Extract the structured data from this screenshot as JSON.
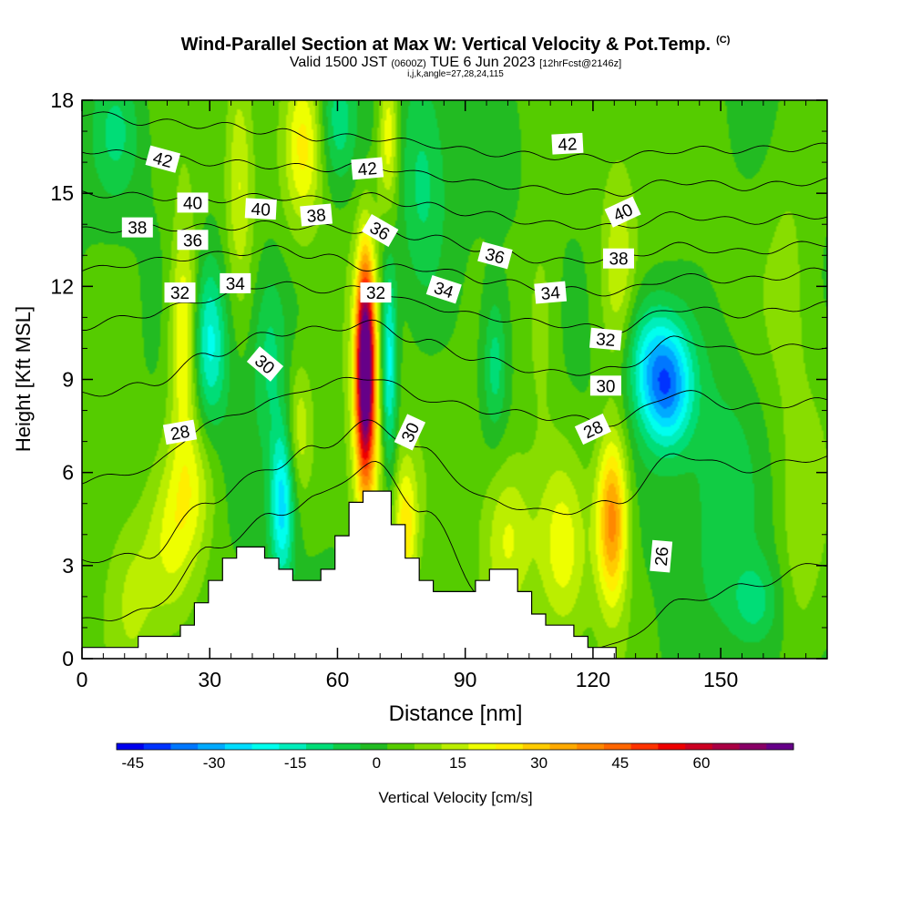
{
  "header": {
    "title": "Wind-Parallel Section at Max W: Vertical Velocity & Pot.Temp.",
    "copyright": "(C)",
    "valid_prefix": "Valid 1500 JST",
    "valid_utc": "(0600Z)",
    "valid_date": "TUE 6 Jun 2023",
    "forecast": "[12hrFcst@2146z]",
    "indices": "i,j,k,angle=27,28,24,115"
  },
  "chart_data": {
    "type": "heatmap",
    "xlabel": "Distance [nm]",
    "ylabel": "Height [Kft MSL]",
    "xlim": [
      0,
      175
    ],
    "ylim": [
      0,
      18
    ],
    "x_ticks": [
      "0",
      "30",
      "60",
      "90",
      "120",
      "150"
    ],
    "y_ticks": [
      "0",
      "3",
      "6",
      "9",
      "12",
      "15",
      "18"
    ],
    "colorbar": {
      "label": "Vertical Velocity [cm/s]",
      "tick_labels": [
        "-45",
        "-30",
        "-15",
        "0",
        "15",
        "30",
        "45",
        "60"
      ],
      "levels_min": -48,
      "levels_step": 5,
      "colors": [
        "#0000ee",
        "#0033ff",
        "#0077ff",
        "#00aaff",
        "#00ddff",
        "#00ffee",
        "#00eebb",
        "#00dd77",
        "#11cc44",
        "#22bb22",
        "#55cc00",
        "#88dd00",
        "#bbee00",
        "#eeff00",
        "#ffee00",
        "#ffcc00",
        "#ffaa00",
        "#ff8800",
        "#ff6600",
        "#ff3300",
        "#ee0000",
        "#cc0022",
        "#aa0044",
        "#880066",
        "#660088"
      ]
    },
    "vertical_velocity_features": [
      {
        "x": 24,
        "y": 10.5,
        "sx": 2.4,
        "sy": 2.5,
        "w": 24
      },
      {
        "x": 26,
        "y": 5.5,
        "sx": 4,
        "sy": 1.6,
        "w": 12
      },
      {
        "x": 21,
        "y": 3.5,
        "sx": 4,
        "sy": 1.8,
        "w": 12
      },
      {
        "x": 30,
        "y": 10.2,
        "sx": 3,
        "sy": 1.8,
        "w": -22
      },
      {
        "x": 37,
        "y": 15.5,
        "sx": 2.2,
        "sy": 2.5,
        "w": 14
      },
      {
        "x": 44,
        "y": 10,
        "sx": 3,
        "sy": 2,
        "w": -12
      },
      {
        "x": 47,
        "y": 5,
        "sx": 2,
        "sy": 1.8,
        "w": -28
      },
      {
        "x": 51,
        "y": 7.5,
        "sx": 2.2,
        "sy": 1.5,
        "w": 12
      },
      {
        "x": 52,
        "y": 16.5,
        "sx": 3,
        "sy": 1.8,
        "w": 18
      },
      {
        "x": 60,
        "y": 17.3,
        "sx": 3,
        "sy": 1.5,
        "w": -14
      },
      {
        "x": 66.5,
        "y": 9.5,
        "sx": 1.4,
        "sy": 2.3,
        "w": 70
      },
      {
        "x": 67,
        "y": 7.5,
        "sx": 2.8,
        "sy": 3.2,
        "w": 24
      },
      {
        "x": 72,
        "y": 9.5,
        "sx": 1.4,
        "sy": 2.4,
        "w": -28
      },
      {
        "x": 72,
        "y": 16.8,
        "sx": 1.7,
        "sy": 1.8,
        "w": 20
      },
      {
        "x": 76,
        "y": 4.2,
        "sx": 2,
        "sy": 1.6,
        "w": 22
      },
      {
        "x": 80,
        "y": 15.5,
        "sx": 4,
        "sy": 2.5,
        "w": -12
      },
      {
        "x": 97,
        "y": 9.5,
        "sx": 2,
        "sy": 1.6,
        "w": -14
      },
      {
        "x": 100,
        "y": 4,
        "sx": 4,
        "sy": 1.8,
        "w": 14
      },
      {
        "x": 108,
        "y": 11,
        "sx": 3,
        "sy": 2.5,
        "w": 8
      },
      {
        "x": 113,
        "y": 3.5,
        "sx": 4,
        "sy": 2,
        "w": 16
      },
      {
        "x": 124.5,
        "y": 4.5,
        "sx": 2.6,
        "sy": 1.9,
        "w": 38
      },
      {
        "x": 126,
        "y": 12.5,
        "sx": 2.8,
        "sy": 2.5,
        "w": 12
      },
      {
        "x": 137.5,
        "y": 8.8,
        "sx": 4.2,
        "sy": 1.4,
        "w": -36
      },
      {
        "x": 132,
        "y": 9.8,
        "sx": 4,
        "sy": 1.4,
        "w": -14
      },
      {
        "x": 150,
        "y": 6,
        "sx": 7,
        "sy": 3.5,
        "w": -8
      },
      {
        "x": 158,
        "y": 1.8,
        "sx": 4,
        "sy": 1,
        "w": -12
      },
      {
        "x": 169,
        "y": 3.5,
        "sx": 3.5,
        "sy": 3,
        "w": 7
      },
      {
        "x": 166,
        "y": 12,
        "sx": 4,
        "sy": 3,
        "w": 6
      },
      {
        "x": 8,
        "y": 17,
        "sx": 4,
        "sy": 1.5,
        "w": -10
      },
      {
        "x": 12,
        "y": 2,
        "sx": 4,
        "sy": 2,
        "w": 8
      }
    ],
    "terrain_kft": [
      [
        0,
        0.35
      ],
      [
        10,
        0.35
      ],
      [
        16,
        0.6
      ],
      [
        22,
        0.9
      ],
      [
        25,
        1.2
      ],
      [
        28,
        1.9
      ],
      [
        31,
        2.6
      ],
      [
        36,
        3.3
      ],
      [
        40,
        3.6
      ],
      [
        45,
        3.2
      ],
      [
        49,
        2.7
      ],
      [
        52,
        2.5
      ],
      [
        55,
        2.6
      ],
      [
        58,
        3
      ],
      [
        60,
        3.6
      ],
      [
        62,
        4.5
      ],
      [
        65,
        5.2
      ],
      [
        68,
        5.6
      ],
      [
        71,
        5.3
      ],
      [
        74,
        4.5
      ],
      [
        77,
        3.5
      ],
      [
        80,
        2.7
      ],
      [
        83,
        2.3
      ],
      [
        86,
        2.1
      ],
      [
        89,
        2
      ],
      [
        92,
        2.1
      ],
      [
        95,
        2.5
      ],
      [
        98,
        2.8
      ],
      [
        101,
        2.7
      ],
      [
        104,
        2.2
      ],
      [
        108,
        1.4
      ],
      [
        113,
        1
      ],
      [
        118,
        0.7
      ],
      [
        121,
        0.4
      ],
      [
        126,
        0
      ],
      [
        175,
        0
      ]
    ],
    "theta_lines_kft": {
      "xs": [
        0,
        15,
        30,
        45,
        55,
        68,
        80,
        95,
        110,
        125,
        140,
        155,
        175
      ],
      "lines": [
        [
          1.2,
          1.5,
          3.5,
          4.6,
          5.2,
          6.3,
          4.8,
          2,
          0.6,
          0.4,
          1.8,
          2.3,
          3.1
        ],
        [
          3.2,
          3.3,
          5.1,
          6.2,
          6.8,
          7.6,
          6.7,
          5.1,
          4.7,
          5,
          6.6,
          6.1,
          6.5
        ],
        [
          5.7,
          6.1,
          7.6,
          8.3,
          8.8,
          9.1,
          8.4,
          8,
          7.8,
          7.6,
          8.6,
          8.1,
          8.3
        ],
        [
          8.5,
          8.8,
          9.8,
          10.5,
          10.6,
          10.8,
          10.2,
          9.6,
          9.2,
          9.3,
          10.3,
          9.9,
          10.1
        ],
        [
          10.7,
          11.1,
          11.6,
          12.1,
          11.9,
          11.9,
          11.4,
          11,
          10.8,
          10.6,
          11.3,
          11.1,
          11.4
        ],
        [
          12.5,
          12.8,
          13,
          13.2,
          13,
          12.6,
          12.6,
          12.2,
          11.9,
          11.8,
          12.3,
          12.2,
          12.5
        ],
        [
          13.8,
          13.9,
          13.9,
          14,
          13.9,
          13.8,
          13.6,
          13.2,
          12.8,
          12.9,
          13.3,
          13.1,
          13.4
        ],
        [
          15,
          14.9,
          14.8,
          14.9,
          14.8,
          14.9,
          14.6,
          14.3,
          14,
          13.9,
          14.3,
          14.1,
          14.3
        ],
        [
          16.4,
          16.2,
          16,
          15.9,
          15.8,
          15.9,
          15.6,
          15.3,
          15.1,
          15,
          15.4,
          15.2,
          15.4
        ],
        [
          17.6,
          17.3,
          17.2,
          17,
          16.8,
          16.8,
          16.6,
          16.3,
          16.2,
          16.1,
          16.4,
          16.4,
          16.5
        ]
      ]
    },
    "theta_labels": [
      {
        "text": "42",
        "x": 19,
        "y": 16.1,
        "rot": 15
      },
      {
        "text": "42",
        "x": 67,
        "y": 15.8,
        "rot": -5
      },
      {
        "text": "42",
        "x": 114,
        "y": 16.6,
        "rot": -3
      },
      {
        "text": "40",
        "x": 26,
        "y": 14.7,
        "rot": 0
      },
      {
        "text": "40",
        "x": 42,
        "y": 14.5,
        "rot": 3
      },
      {
        "text": "40",
        "x": 127,
        "y": 14.4,
        "rot": -25
      },
      {
        "text": "38",
        "x": 13,
        "y": 13.9,
        "rot": 0
      },
      {
        "text": "38",
        "x": 55,
        "y": 14.3,
        "rot": -5
      },
      {
        "text": "38",
        "x": 126,
        "y": 12.9,
        "rot": 0
      },
      {
        "text": "36",
        "x": 26,
        "y": 13.5,
        "rot": 0
      },
      {
        "text": "36",
        "x": 70,
        "y": 13.8,
        "rot": 30
      },
      {
        "text": "36",
        "x": 97,
        "y": 13,
        "rot": 15
      },
      {
        "text": "34",
        "x": 36,
        "y": 12.1,
        "rot": 0
      },
      {
        "text": "34",
        "x": 85,
        "y": 11.9,
        "rot": 18
      },
      {
        "text": "34",
        "x": 110,
        "y": 11.8,
        "rot": -5
      },
      {
        "text": "32",
        "x": 23,
        "y": 11.8,
        "rot": 0
      },
      {
        "text": "32",
        "x": 69,
        "y": 11.8,
        "rot": 0
      },
      {
        "text": "32",
        "x": 123,
        "y": 10.3,
        "rot": 5
      },
      {
        "text": "30",
        "x": 43,
        "y": 9.5,
        "rot": 40
      },
      {
        "text": "30",
        "x": 77,
        "y": 7.3,
        "rot": -65
      },
      {
        "text": "30",
        "x": 123,
        "y": 8.8,
        "rot": 0
      },
      {
        "text": "28",
        "x": 23,
        "y": 7.3,
        "rot": -10
      },
      {
        "text": "28",
        "x": 120,
        "y": 7.4,
        "rot": -25
      },
      {
        "text": "26",
        "x": 136,
        "y": 3.3,
        "rot": -85
      }
    ]
  }
}
